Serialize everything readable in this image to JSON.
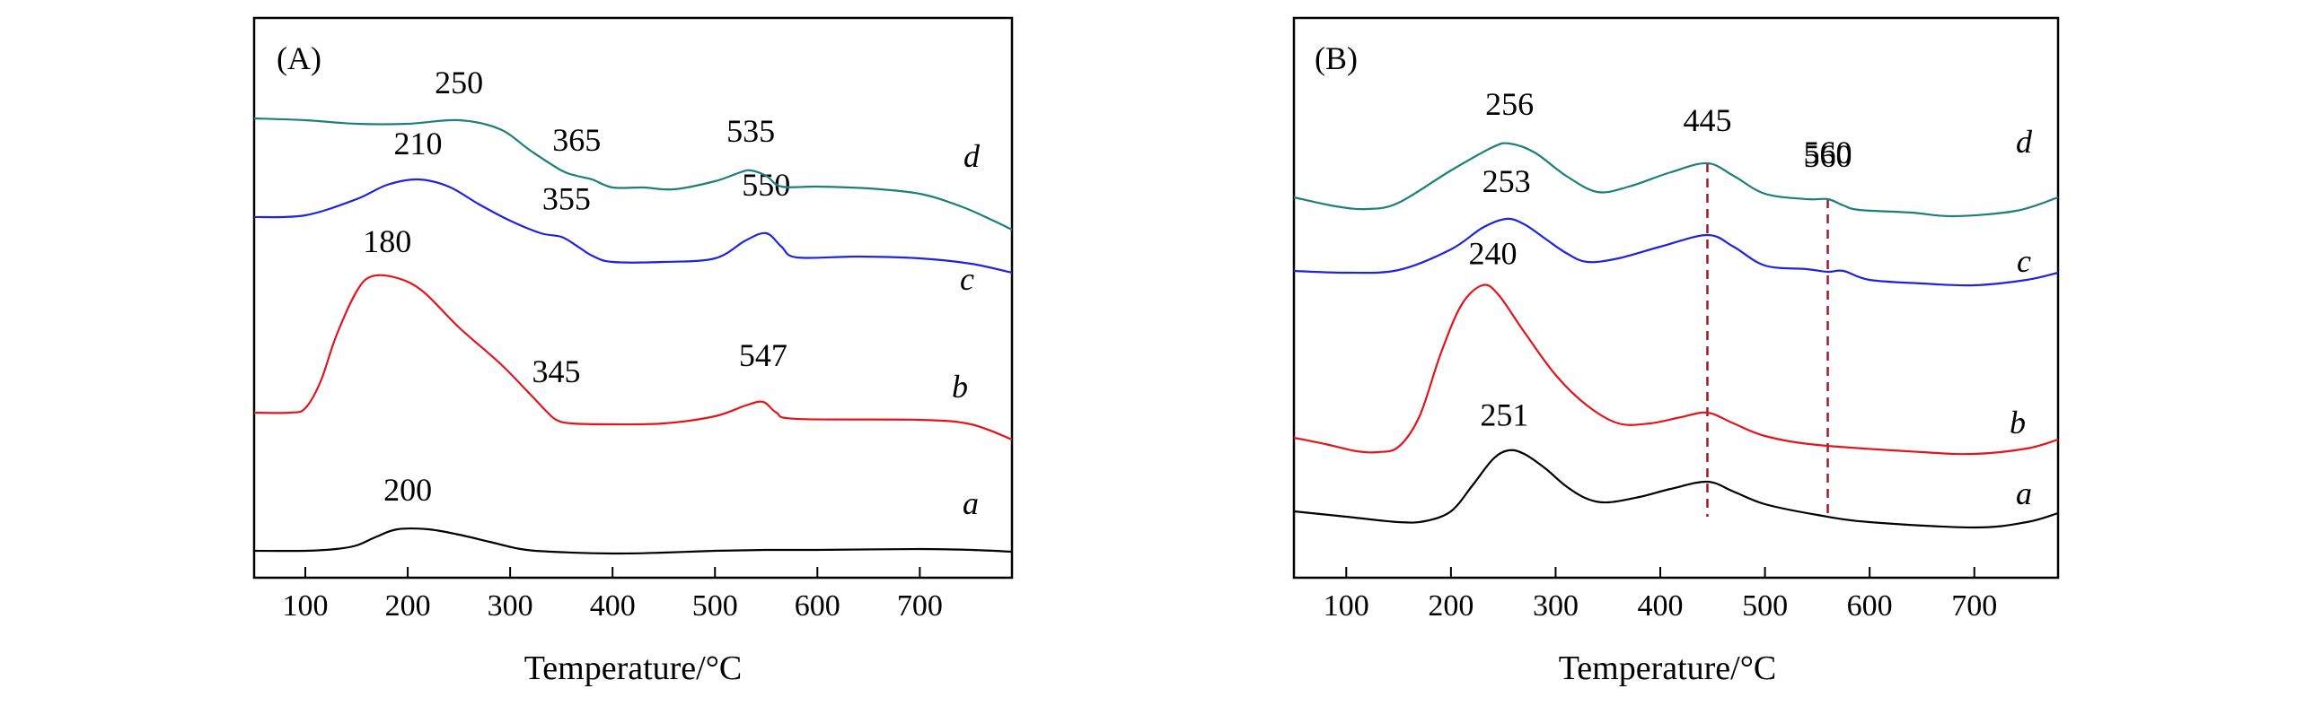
{
  "colors": {
    "a": "#000000",
    "b": "#e3141b",
    "c": "#1d24e0",
    "d": "#1c7f78",
    "dashed": "#a0192a"
  },
  "chart_data": [
    {
      "type": "line",
      "panel_label": "(A)",
      "xlabel": "Temperature/°C",
      "ylabel": "",
      "xlim": [
        50,
        790
      ],
      "x_ticks": [
        100,
        200,
        300,
        400,
        500,
        600,
        700
      ],
      "series": [
        {
          "name": "a",
          "color": "#000000",
          "points": [
            [
              50,
              6
            ],
            [
              100,
              6
            ],
            [
              130,
              8
            ],
            [
              150,
              12
            ],
            [
              170,
              22
            ],
            [
              190,
              30
            ],
            [
              220,
              30
            ],
            [
              250,
              24
            ],
            [
              280,
              16
            ],
            [
              310,
              8
            ],
            [
              340,
              5
            ],
            [
              400,
              3
            ],
            [
              450,
              4
            ],
            [
              500,
              6
            ],
            [
              550,
              7
            ],
            [
              600,
              7
            ],
            [
              700,
              8
            ],
            [
              750,
              7
            ],
            [
              790,
              5
            ]
          ],
          "peak_labels": [
            {
              "x": 200,
              "text": "200"
            }
          ]
        },
        {
          "name": "b",
          "color": "#e3141b",
          "points": [
            [
              50,
              160
            ],
            [
              85,
              160
            ],
            [
              100,
              165
            ],
            [
              115,
              195
            ],
            [
              130,
              245
            ],
            [
              150,
              295
            ],
            [
              165,
              312
            ],
            [
              190,
              310
            ],
            [
              215,
              295
            ],
            [
              250,
              255
            ],
            [
              290,
              215
            ],
            [
              320,
              180
            ],
            [
              335,
              162
            ],
            [
              345,
              152
            ],
            [
              360,
              148
            ],
            [
              400,
              147
            ],
            [
              450,
              148
            ],
            [
              500,
              156
            ],
            [
              530,
              168
            ],
            [
              547,
              172
            ],
            [
              560,
              160
            ],
            [
              580,
              153
            ],
            [
              700,
              152
            ],
            [
              750,
              147
            ],
            [
              790,
              130
            ]
          ],
          "peak_labels": [
            {
              "x": 180,
              "text": "180"
            },
            {
              "x": 345,
              "text": "345"
            },
            {
              "x": 547,
              "text": "547"
            }
          ]
        },
        {
          "name": "c",
          "color": "#1d24e0",
          "points": [
            [
              50,
              378
            ],
            [
              100,
              380
            ],
            [
              150,
              398
            ],
            [
              180,
              414
            ],
            [
              210,
              420
            ],
            [
              240,
              412
            ],
            [
              270,
              392
            ],
            [
              300,
              374
            ],
            [
              330,
              360
            ],
            [
              350,
              356
            ],
            [
              365,
              346
            ],
            [
              380,
              335
            ],
            [
              400,
              328
            ],
            [
              450,
              328
            ],
            [
              500,
              332
            ],
            [
              530,
              352
            ],
            [
              550,
              360
            ],
            [
              565,
              345
            ],
            [
              580,
              333
            ],
            [
              640,
              334
            ],
            [
              700,
              332
            ],
            [
              750,
              326
            ],
            [
              790,
              316
            ]
          ],
          "peak_labels": [
            {
              "x": 210,
              "text": "210"
            },
            {
              "x": 355,
              "text": "355"
            },
            {
              "x": 550,
              "text": "550"
            }
          ]
        },
        {
          "name": "d",
          "color": "#1c7f78",
          "points": [
            [
              50,
              488
            ],
            [
              100,
              486
            ],
            [
              150,
              482
            ],
            [
              200,
              482
            ],
            [
              250,
              486
            ],
            [
              290,
              476
            ],
            [
              320,
              452
            ],
            [
              350,
              430
            ],
            [
              365,
              424
            ],
            [
              380,
              420
            ],
            [
              400,
              411
            ],
            [
              430,
              411
            ],
            [
              460,
              409
            ],
            [
              500,
              418
            ],
            [
              525,
              428
            ],
            [
              535,
              430
            ],
            [
              550,
              424
            ],
            [
              565,
              412
            ],
            [
              600,
              412
            ],
            [
              650,
              410
            ],
            [
              700,
              404
            ],
            [
              740,
              390
            ],
            [
              770,
              375
            ],
            [
              790,
              364
            ]
          ],
          "peak_labels": [
            {
              "x": 250,
              "text": "250"
            },
            {
              "x": 365,
              "text": "365"
            },
            {
              "x": 535,
              "text": "535"
            }
          ]
        }
      ]
    },
    {
      "type": "line",
      "panel_label": "(B)",
      "xlabel": "Temperature/°C",
      "ylabel": "",
      "xlim": [
        50,
        780
      ],
      "x_ticks": [
        100,
        200,
        300,
        400,
        500,
        600,
        700
      ],
      "series": [
        {
          "name": "a",
          "color": "#000000",
          "points": [
            [
              50,
              30
            ],
            [
              100,
              24
            ],
            [
              150,
              18
            ],
            [
              175,
              19
            ],
            [
              200,
              30
            ],
            [
              220,
              58
            ],
            [
              240,
              88
            ],
            [
              255,
              98
            ],
            [
              270,
              94
            ],
            [
              290,
              78
            ],
            [
              310,
              58
            ],
            [
              330,
              44
            ],
            [
              350,
              40
            ],
            [
              380,
              46
            ],
            [
              410,
              55
            ],
            [
              445,
              63
            ],
            [
              470,
              52
            ],
            [
              500,
              38
            ],
            [
              550,
              26
            ],
            [
              600,
              18
            ],
            [
              700,
              12
            ],
            [
              750,
              18
            ],
            [
              780,
              28
            ]
          ],
          "peak_labels": [
            {
              "x": 251,
              "text": "251"
            }
          ]
        },
        {
          "name": "b",
          "color": "#e3141b",
          "points": [
            [
              50,
              112
            ],
            [
              80,
              105
            ],
            [
              110,
              97
            ],
            [
              130,
              96
            ],
            [
              150,
              102
            ],
            [
              170,
              136
            ],
            [
              190,
              205
            ],
            [
              210,
              260
            ],
            [
              230,
              282
            ],
            [
              245,
              272
            ],
            [
              270,
              230
            ],
            [
              300,
              182
            ],
            [
              330,
              148
            ],
            [
              360,
              128
            ],
            [
              390,
              128
            ],
            [
              420,
              135
            ],
            [
              445,
              140
            ],
            [
              470,
              128
            ],
            [
              500,
              114
            ],
            [
              550,
              104
            ],
            [
              650,
              96
            ],
            [
              700,
              94
            ],
            [
              750,
              100
            ],
            [
              780,
              110
            ]
          ],
          "peak_labels": [
            {
              "x": 240,
              "text": "240"
            }
          ]
        },
        {
          "name": "c",
          "color": "#1d24e0",
          "points": [
            [
              50,
              298
            ],
            [
              100,
              296
            ],
            [
              150,
              299
            ],
            [
              200,
              322
            ],
            [
              230,
              346
            ],
            [
              253,
              356
            ],
            [
              270,
              350
            ],
            [
              290,
              334
            ],
            [
              310,
              318
            ],
            [
              330,
              308
            ],
            [
              360,
              312
            ],
            [
              400,
              325
            ],
            [
              445,
              338
            ],
            [
              470,
              325
            ],
            [
              500,
              304
            ],
            [
              540,
              300
            ],
            [
              560,
              297
            ],
            [
              575,
              298
            ],
            [
              600,
              288
            ],
            [
              650,
              284
            ],
            [
              700,
              282
            ],
            [
              750,
              288
            ],
            [
              780,
              296
            ]
          ],
          "peak_labels": [
            {
              "x": 253,
              "text": "253"
            }
          ]
        },
        {
          "name": "d",
          "color": "#1c7f78",
          "points": [
            [
              50,
              380
            ],
            [
              90,
              370
            ],
            [
              120,
              367
            ],
            [
              150,
              374
            ],
            [
              200,
              410
            ],
            [
              240,
              436
            ],
            [
              256,
              440
            ],
            [
              280,
              430
            ],
            [
              310,
              404
            ],
            [
              340,
              386
            ],
            [
              370,
              392
            ],
            [
              410,
              408
            ],
            [
              445,
              418
            ],
            [
              470,
              404
            ],
            [
              500,
              384
            ],
            [
              540,
              378
            ],
            [
              560,
              378
            ],
            [
              575,
              371
            ],
            [
              590,
              366
            ],
            [
              640,
              363
            ],
            [
              680,
              359
            ],
            [
              740,
              365
            ],
            [
              780,
              380
            ]
          ],
          "peak_labels": [
            {
              "x": 256,
              "text": "256"
            },
            {
              "x": 560,
              "text": "560"
            }
          ]
        }
      ],
      "reference_lines": [
        {
          "x": 445,
          "label": "445"
        },
        {
          "x": 560,
          "label": "560"
        }
      ]
    }
  ]
}
